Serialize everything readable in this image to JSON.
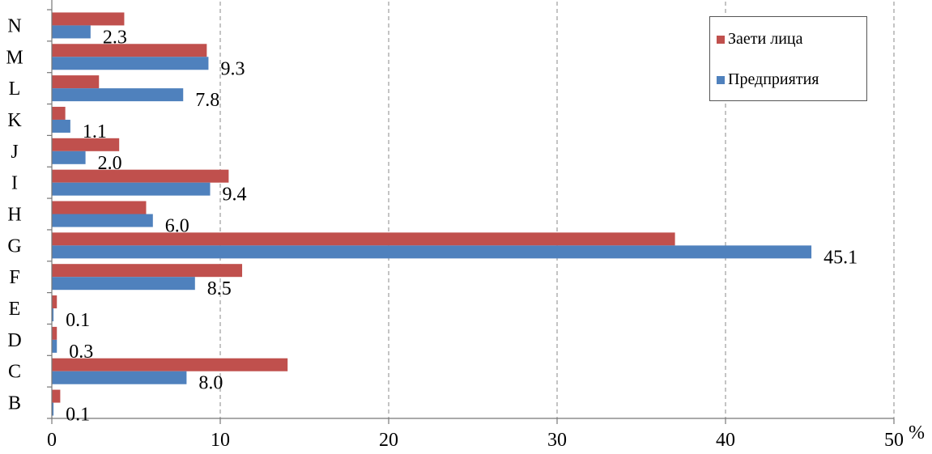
{
  "chart_data": {
    "type": "bar",
    "orientation": "horizontal",
    "categories": [
      "B",
      "C",
      "D",
      "E",
      "F",
      "G",
      "H",
      "I",
      "J",
      "K",
      "L",
      "M",
      "N"
    ],
    "series": [
      {
        "name": "Заети лица",
        "color": "#c0504d",
        "values": [
          0.5,
          14.0,
          0.3,
          0.3,
          11.3,
          37.0,
          5.6,
          10.5,
          4.0,
          0.8,
          2.8,
          9.2,
          4.3
        ]
      },
      {
        "name": "Предприятия",
        "color": "#4f81bd",
        "values": [
          0.1,
          8.0,
          0.3,
          0.1,
          8.5,
          45.1,
          6.0,
          9.4,
          2.0,
          1.1,
          7.8,
          9.3,
          2.3
        ]
      }
    ],
    "data_labels": [
      "0.1",
      "8.0",
      "0.3",
      "0.1",
      "8.5",
      "45.1",
      "6.0",
      "9.4",
      "2.0",
      "1.1",
      "7.8",
      "9.3",
      "2.3"
    ],
    "xlim": [
      0,
      50
    ],
    "xticks": [
      0,
      10,
      20,
      30,
      40,
      50
    ],
    "xunit": "%",
    "grid": "vertical dashed",
    "legend_position": "top-right"
  }
}
